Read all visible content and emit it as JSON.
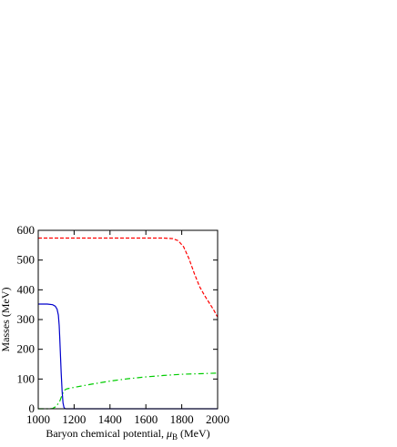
{
  "chart_data": {
    "type": "line",
    "xlabel_main": "Baryon chemical potential, ",
    "xlabel_symbol": "μ",
    "xlabel_sub": "B",
    "xlabel_unit": " (MeV)",
    "ylabel": "Masses (MeV)",
    "xlim": [
      1000,
      2000
    ],
    "ylim": [
      0,
      600
    ],
    "x_ticks": [
      "1000",
      "1200",
      "1400",
      "1600",
      "1800",
      "2000"
    ],
    "y_ticks": [
      "0",
      "100",
      "200",
      "300",
      "400",
      "500",
      "600"
    ],
    "grid": false,
    "legend": "none",
    "series": [
      {
        "color": "#ff0000",
        "style": "dashed",
        "points": [
          [
            1000,
            574
          ],
          [
            1100,
            574
          ],
          [
            1200,
            574
          ],
          [
            1300,
            574
          ],
          [
            1400,
            574
          ],
          [
            1500,
            574
          ],
          [
            1600,
            574
          ],
          [
            1700,
            574
          ],
          [
            1750,
            572
          ],
          [
            1780,
            565
          ],
          [
            1810,
            545
          ],
          [
            1840,
            505
          ],
          [
            1870,
            455
          ],
          [
            1900,
            410
          ],
          [
            1930,
            378
          ],
          [
            1960,
            350
          ],
          [
            1980,
            330
          ],
          [
            2000,
            308
          ]
        ]
      },
      {
        "color": "#00cc00",
        "style": "dashdot",
        "points": [
          [
            1000,
            0
          ],
          [
            1050,
            0
          ],
          [
            1080,
            1
          ],
          [
            1100,
            8
          ],
          [
            1120,
            25
          ],
          [
            1135,
            50
          ],
          [
            1145,
            62
          ],
          [
            1150,
            64
          ],
          [
            1160,
            67
          ],
          [
            1200,
            72
          ],
          [
            1300,
            83
          ],
          [
            1400,
            93
          ],
          [
            1500,
            101
          ],
          [
            1600,
            107
          ],
          [
            1700,
            112
          ],
          [
            1800,
            116
          ],
          [
            1900,
            118
          ],
          [
            2000,
            120
          ]
        ]
      },
      {
        "color": "#0000cc",
        "style": "solid",
        "points": [
          [
            1000,
            352
          ],
          [
            1050,
            352
          ],
          [
            1080,
            350
          ],
          [
            1095,
            345
          ],
          [
            1105,
            335
          ],
          [
            1112,
            315
          ],
          [
            1117,
            280
          ],
          [
            1120,
            240
          ],
          [
            1124,
            180
          ],
          [
            1128,
            120
          ],
          [
            1133,
            60
          ],
          [
            1138,
            20
          ],
          [
            1143,
            5
          ],
          [
            1148,
            1
          ],
          [
            1155,
            0
          ],
          [
            1300,
            0
          ],
          [
            1500,
            0
          ],
          [
            1700,
            0
          ],
          [
            2000,
            0
          ]
        ]
      }
    ]
  }
}
